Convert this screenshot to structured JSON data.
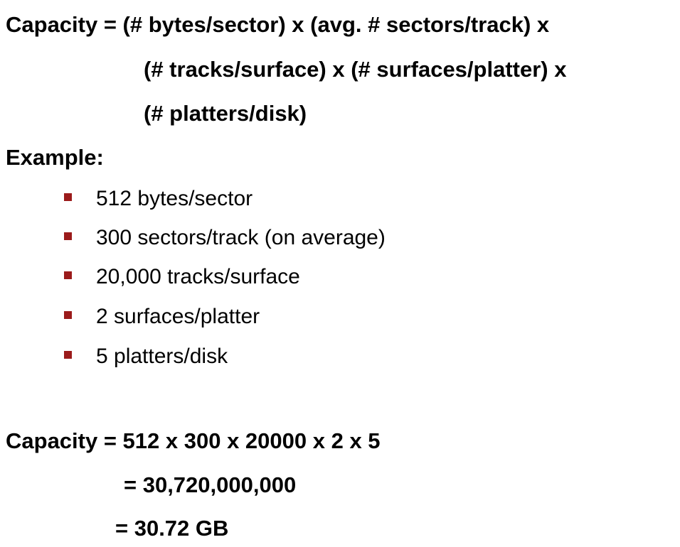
{
  "formula": {
    "line1": "Capacity =  (# bytes/sector) x (avg. # sectors/track) x",
    "line2": "(# tracks/surface) x (# surfaces/platter) x",
    "line3": "(# platters/disk)"
  },
  "example": {
    "heading": "Example:",
    "items": [
      "512 bytes/sector",
      "300 sectors/track (on average)",
      "20,000 tracks/surface",
      "2 surfaces/platter",
      "5 platters/disk"
    ],
    "bullet_color": "#9b1b1b"
  },
  "result": {
    "line1": "Capacity = 512 x 300 x 20000 x 2 x 5",
    "line2": "= 30,720,000,000",
    "line3": "= 30.72 GB"
  }
}
